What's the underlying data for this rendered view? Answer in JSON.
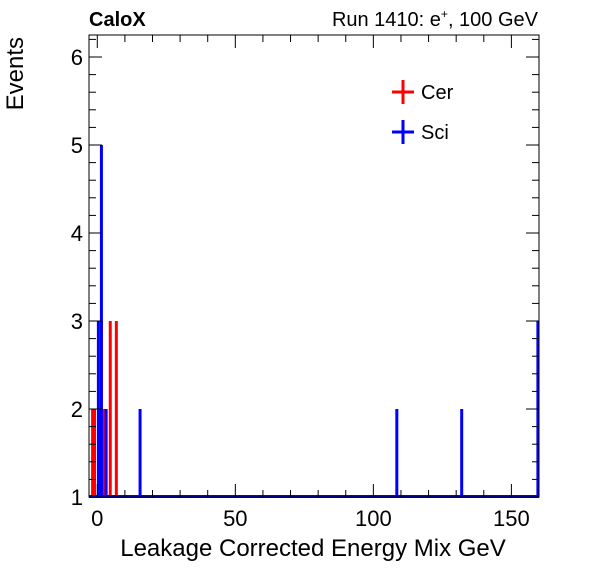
{
  "header": {
    "left": "CaloX",
    "right_prefix": "Run 1410: e",
    "right_sup": "+",
    "right_suffix": ", 100 GeV"
  },
  "chart_data": {
    "type": "histogram",
    "xlabel": "Leakage Corrected Energy Mix GeV",
    "ylabel": "Events",
    "xlim": [
      -3,
      160
    ],
    "ylim": [
      1,
      6.25
    ],
    "x_ticks": [
      0,
      50,
      100,
      150
    ],
    "y_ticks": [
      1,
      2,
      3,
      4,
      5,
      6
    ],
    "grid": false,
    "legend_position": "top-right",
    "series": [
      {
        "name": "Cer",
        "color": "#ff0000",
        "bins": [
          {
            "x": -1.7,
            "y": 2
          },
          {
            "x": -1.0,
            "y": 2
          },
          {
            "x": 0.6,
            "y": 2
          },
          {
            "x": 1.5,
            "y": 3
          },
          {
            "x": 2.6,
            "y": 2
          },
          {
            "x": 4.7,
            "y": 3
          },
          {
            "x": 6.9,
            "y": 3
          }
        ]
      },
      {
        "name": "Sci",
        "color": "#0000ff",
        "bins": [
          {
            "x": 0.4,
            "y": 3
          },
          {
            "x": 1.5,
            "y": 5
          },
          {
            "x": 3.2,
            "y": 2
          },
          {
            "x": 15.5,
            "y": 2
          },
          {
            "x": 108.5,
            "y": 2
          },
          {
            "x": 132.0,
            "y": 2
          },
          {
            "x": 159.6,
            "y": 3
          }
        ]
      }
    ]
  }
}
